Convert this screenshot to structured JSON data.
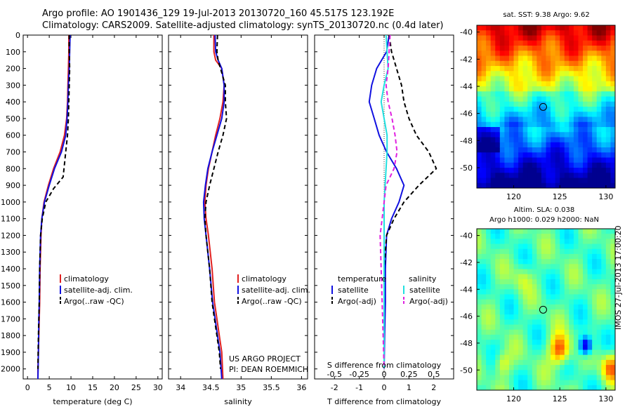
{
  "header": {
    "title_line1": "Argo profile: AO 1901436_129 19-Jul-2013 20130720_160 45.517S 123.192E",
    "title_line2": "Climatology: CARS2009. Satellite-adjusted climatology: synTS_20130720.nc (0.4d later)"
  },
  "credit": {
    "project": "US ARGO PROJECT",
    "pi": "PI: DEAN ROEMMICH"
  },
  "watermark": "IMOS 27-Jul-2013 17:00:20",
  "colors": {
    "climatology": "#e02020",
    "satellite": "#1010e0",
    "argo": "#000000",
    "salinity_satellite": "#20e0e0",
    "salinity_argo": "#e020e0"
  },
  "chart_data": [
    {
      "type": "line",
      "name": "temperature-profile",
      "xlabel": "temperature (deg C)",
      "ylabel": "",
      "xlim": [
        -1,
        31
      ],
      "ylim": [
        2060,
        0
      ],
      "xticks": [
        0,
        5,
        10,
        15,
        20,
        25,
        30
      ],
      "yticks": [
        0,
        100,
        200,
        300,
        400,
        500,
        600,
        700,
        800,
        900,
        1000,
        1100,
        1200,
        1300,
        1400,
        1500,
        1600,
        1700,
        1800,
        1900,
        2000
      ],
      "legend": [
        "climatology",
        "satellite-adj. clim.",
        "Argo(..raw -QC)"
      ],
      "legend_position": "lower-center",
      "series": [
        {
          "name": "climatology",
          "x": [
            9.5,
            9.5,
            9.4,
            9.3,
            9.2,
            9.0,
            8.5,
            7.5,
            6.0,
            4.8,
            3.8,
            3.3,
            3.1,
            2.9,
            2.8,
            2.7,
            2.6,
            2.5,
            2.4,
            2.4
          ],
          "y": [
            0,
            100,
            200,
            300,
            400,
            500,
            600,
            700,
            800,
            900,
            1000,
            1100,
            1200,
            1400,
            1600,
            1700,
            1800,
            1900,
            2000,
            2060
          ]
        },
        {
          "name": "satellite-adj. clim.",
          "x": [
            9.8,
            9.7,
            9.6,
            9.4,
            9.3,
            9.1,
            8.8,
            7.8,
            6.2,
            5.0,
            3.9,
            3.3,
            3.0,
            2.8,
            2.7,
            2.6,
            2.55,
            2.5,
            2.45,
            2.4
          ],
          "y": [
            0,
            100,
            200,
            300,
            400,
            500,
            600,
            700,
            800,
            900,
            1000,
            1100,
            1200,
            1400,
            1600,
            1700,
            1800,
            1900,
            2000,
            2060
          ]
        },
        {
          "name": "Argo(..raw -QC)",
          "x": [
            9.6,
            9.6,
            9.7,
            9.6,
            9.5,
            9.4,
            9.2,
            8.8,
            8.2,
            6.0,
            4.2,
            3.4,
            3.0,
            2.8,
            2.7,
            2.6,
            2.5,
            2.45,
            2.4
          ],
          "y": [
            0,
            100,
            200,
            300,
            400,
            500,
            600,
            700,
            850,
            920,
            1000,
            1100,
            1200,
            1400,
            1600,
            1700,
            1800,
            1900,
            2000
          ]
        }
      ]
    },
    {
      "type": "line",
      "name": "salinity-profile",
      "xlabel": "salinity",
      "ylabel": "",
      "xlim": [
        33.8,
        36.1
      ],
      "ylim": [
        2060,
        0
      ],
      "xticks": [
        34,
        34.5,
        35,
        35.5,
        36
      ],
      "legend": [
        "climatology",
        "satellite-adj. clim.",
        "Argo(..raw -QC)"
      ],
      "legend_position": "lower-right",
      "series": [
        {
          "name": "climatology",
          "x": [
            34.55,
            34.55,
            34.58,
            34.68,
            34.72,
            34.7,
            34.65,
            34.58,
            34.52,
            34.46,
            34.42,
            34.4,
            34.42,
            34.46,
            34.52,
            34.56,
            34.6,
            34.64,
            34.68,
            34.7
          ],
          "y": [
            0,
            100,
            150,
            200,
            300,
            400,
            500,
            600,
            700,
            800,
            900,
            1000,
            1100,
            1200,
            1400,
            1600,
            1700,
            1800,
            1900,
            2060
          ]
        },
        {
          "name": "satellite-adj. clim.",
          "x": [
            34.57,
            34.58,
            34.62,
            34.68,
            34.72,
            34.72,
            34.68,
            34.6,
            34.52,
            34.45,
            34.41,
            34.38,
            34.39,
            34.42,
            34.48,
            34.53,
            34.57,
            34.61,
            34.65,
            34.68
          ],
          "y": [
            0,
            100,
            150,
            200,
            300,
            400,
            500,
            600,
            700,
            800,
            900,
            1000,
            1100,
            1200,
            1400,
            1600,
            1700,
            1800,
            1900,
            2060
          ]
        },
        {
          "name": "Argo(..raw -QC)",
          "x": [
            34.61,
            34.6,
            34.62,
            34.66,
            34.74,
            34.74,
            34.76,
            34.7,
            34.62,
            34.55,
            34.48,
            34.42,
            34.4,
            34.42,
            34.48,
            34.52,
            34.56,
            34.6,
            34.64,
            34.66
          ],
          "y": [
            0,
            100,
            150,
            200,
            300,
            400,
            500,
            600,
            700,
            800,
            900,
            1000,
            1100,
            1200,
            1400,
            1600,
            1700,
            1800,
            1900,
            2000
          ]
        }
      ]
    },
    {
      "type": "line",
      "name": "difference-profile",
      "xlabel": "T difference from climatology",
      "xlim": [
        -2.8,
        2.8
      ],
      "xticks": [
        -2,
        -1,
        0,
        1,
        2
      ],
      "secondary_xlabel": "S difference from climatology",
      "secondary_xticks": [
        "-0.5",
        "-0.25",
        "0",
        "0.25",
        "0.5"
      ],
      "ylim": [
        2060,
        0
      ],
      "legend_titles": [
        "temperature",
        "salinity"
      ],
      "legend": [
        "satellite",
        "Argo(-adj)",
        "satellite",
        "Argo(-adj)"
      ],
      "legend_position": "lower-center",
      "series": [
        {
          "name": "temperature satellite",
          "x": [
            0.2,
            0.1,
            -0.3,
            -0.5,
            -0.6,
            -0.4,
            -0.2,
            0.1,
            0.5,
            0.8,
            0.6,
            0.3,
            0.1,
            0.05,
            0.05,
            0.02,
            0.0
          ],
          "y": [
            0,
            100,
            200,
            300,
            400,
            500,
            600,
            700,
            800,
            900,
            1000,
            1100,
            1200,
            1400,
            1600,
            1800,
            2000
          ]
        },
        {
          "name": "temperature Argo(-adj)",
          "x": [
            0.2,
            0.3,
            0.5,
            0.7,
            0.8,
            1.0,
            1.3,
            1.8,
            2.1,
            1.4,
            0.8,
            0.4,
            0.1,
            0.0,
            0.0,
            0.0,
            0.0
          ],
          "y": [
            0,
            100,
            200,
            300,
            400,
            500,
            600,
            700,
            800,
            900,
            1000,
            1100,
            1200,
            1400,
            1600,
            1800,
            2000
          ]
        },
        {
          "name": "salinity satellite",
          "x": [
            0.02,
            0.03,
            0.04,
            0.0,
            -0.03,
            0.0,
            0.03,
            0.03,
            0.02,
            0.01,
            0.0,
            0.0,
            0.0,
            0.0,
            0.0,
            0.0,
            0.0
          ],
          "y": [
            0,
            100,
            200,
            300,
            400,
            500,
            600,
            700,
            800,
            900,
            1000,
            1100,
            1200,
            1400,
            1600,
            1800,
            2000
          ]
        },
        {
          "name": "salinity Argo(-adj)",
          "x": [
            0.06,
            0.05,
            0.04,
            0.02,
            0.04,
            0.08,
            0.11,
            0.13,
            0.1,
            0.02,
            0.0,
            -0.02,
            -0.04,
            -0.03,
            -0.02,
            -0.01,
            0.0
          ],
          "y": [
            0,
            100,
            200,
            300,
            400,
            500,
            600,
            700,
            800,
            900,
            1000,
            1100,
            1200,
            1400,
            1600,
            1800,
            2000
          ]
        }
      ]
    },
    {
      "type": "heatmap",
      "name": "sst-map",
      "title": "sat. SST: 9.38  Argo: 9.62",
      "xlim": [
        116,
        131
      ],
      "ylim": [
        -51.5,
        -39.5
      ],
      "xticks": [
        120,
        125,
        130
      ],
      "yticks": [
        -40,
        -42,
        -44,
        -46,
        -48,
        -50
      ],
      "marker": {
        "lon": 123.192,
        "lat": -45.517
      }
    },
    {
      "type": "heatmap",
      "name": "sla-map",
      "title_line1": "Altim. SLA: 0.038",
      "title_line2": "Argo h1000: 0.029  h2000: NaN",
      "xlim": [
        116,
        131
      ],
      "ylim": [
        -51.5,
        -39.5
      ],
      "xticks": [
        120,
        125,
        130
      ],
      "yticks": [
        -40,
        -42,
        -44,
        -46,
        -48,
        -50
      ],
      "marker": {
        "lon": 123.192,
        "lat": -45.517
      }
    }
  ]
}
